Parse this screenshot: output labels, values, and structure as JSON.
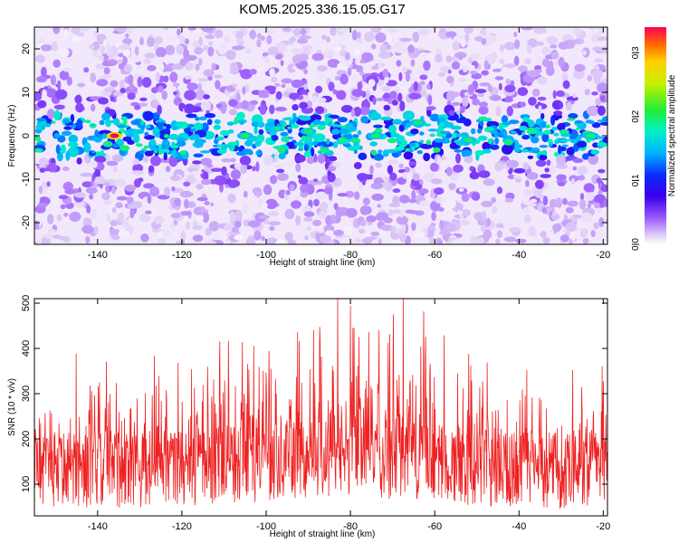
{
  "title": "KOM5.2025.336.15.05.G17",
  "chart_data": [
    {
      "type": "heatmap",
      "xlabel": "Height of straight line (km)",
      "ylabel": "Frequency (Hz)",
      "xlim": [
        -155,
        -19
      ],
      "ylim": [
        -25,
        25
      ],
      "xticks": [
        -140,
        -120,
        -100,
        -80,
        -60,
        -40,
        -20
      ],
      "yticks": [
        -20,
        -10,
        0,
        10,
        20
      ],
      "colorbar": {
        "label": "Normalized spectral amplitude",
        "range": [
          0,
          0.34
        ],
        "ticks": [
          0.0,
          0.1,
          0.2,
          0.3
        ]
      },
      "band": {
        "center_hz": 0,
        "half_width_hz": 5
      },
      "peaks": [
        {
          "x": -136,
          "y": 0,
          "value": 0.34
        },
        {
          "x": -105,
          "y": 0,
          "value": 0.2
        },
        {
          "x": -90,
          "y": 1,
          "value": 0.2
        },
        {
          "x": -74,
          "y": 0,
          "value": 0.2
        },
        {
          "x": -64,
          "y": 3,
          "value": 0.2
        },
        {
          "x": -52,
          "y": -1,
          "value": 0.2
        },
        {
          "x": -23,
          "y": 0,
          "value": 0.2
        }
      ]
    },
    {
      "type": "line",
      "xlabel": "Height of straight line (km)",
      "ylabel": "SNR (10 * v/v)",
      "xlim": [
        -155,
        -19
      ],
      "ylim": [
        30,
        510
      ],
      "xticks": [
        -140,
        -120,
        -100,
        -80,
        -60,
        -40,
        -20
      ],
      "yticks": [
        100,
        200,
        300,
        400,
        500
      ],
      "series": [
        {
          "name": "SNR",
          "color": "#ee2222",
          "baseline": 130,
          "peak": {
            "x": -83,
            "value": 510
          }
        }
      ]
    }
  ]
}
